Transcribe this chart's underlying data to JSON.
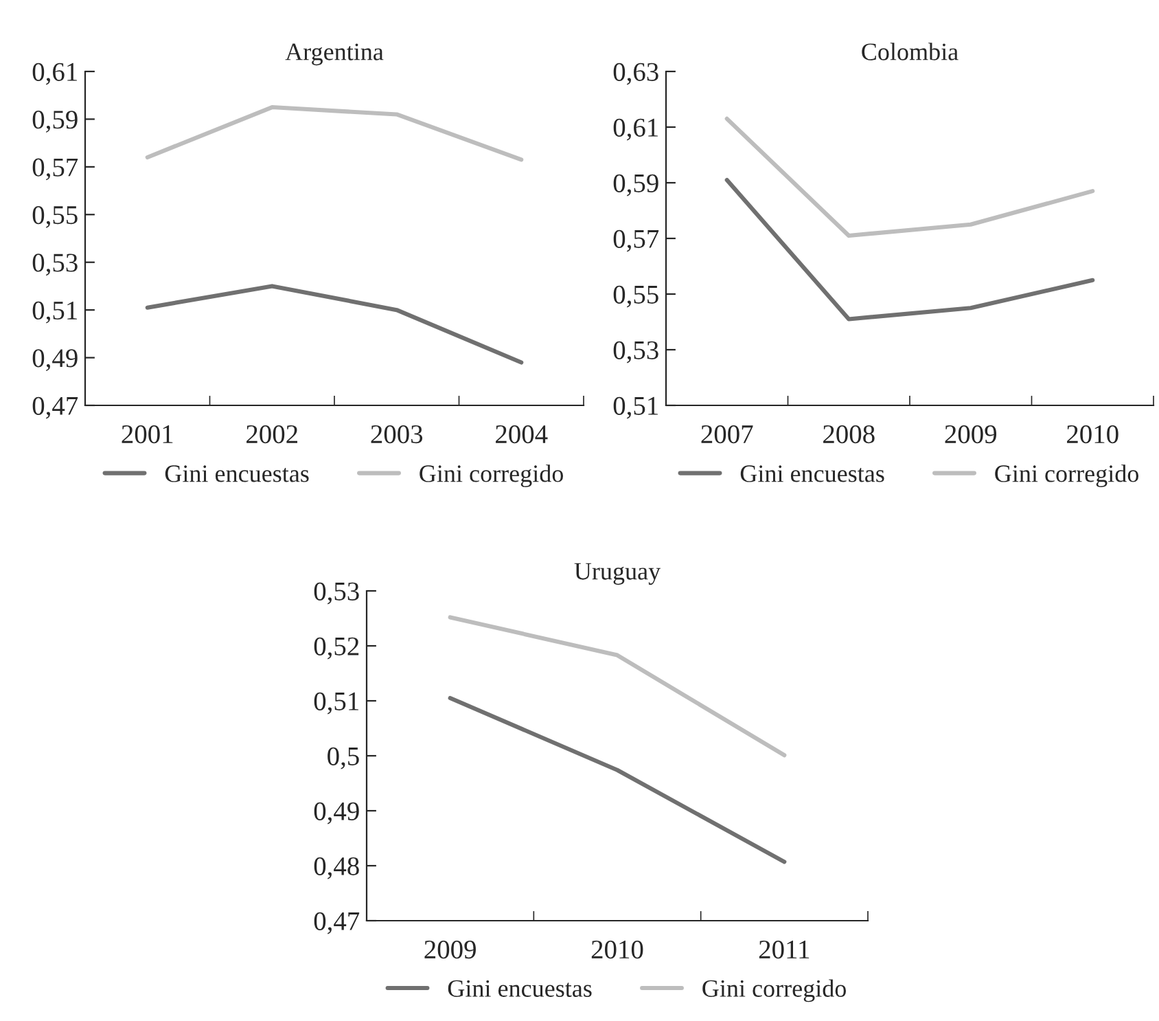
{
  "chart_data": [
    {
      "type": "line",
      "title": "Argentina",
      "categories": [
        "2001",
        "2002",
        "2003",
        "2004"
      ],
      "series": [
        {
          "name": "Gini encuestas",
          "color": "#707070",
          "values": [
            0.511,
            0.52,
            0.51,
            0.488
          ]
        },
        {
          "name": "Gini corregido",
          "color": "#bdbdbd",
          "values": [
            0.574,
            0.595,
            0.592,
            0.573
          ]
        }
      ],
      "ylim": [
        0.47,
        0.61
      ],
      "yticks": [
        {
          "value": 0.47,
          "label": "0,47"
        },
        {
          "value": 0.49,
          "label": "0,49"
        },
        {
          "value": 0.51,
          "label": "0,51"
        },
        {
          "value": 0.53,
          "label": "0,53"
        },
        {
          "value": 0.55,
          "label": "0,55"
        },
        {
          "value": 0.57,
          "label": "0,57"
        },
        {
          "value": 0.59,
          "label": "0,59"
        },
        {
          "value": 0.61,
          "label": "0,61"
        }
      ],
      "grid": false,
      "legend": "bottom",
      "marker": "none",
      "line_style": "solid"
    },
    {
      "type": "line",
      "title": "Colombia",
      "categories": [
        "2007",
        "2008",
        "2009",
        "2010"
      ],
      "series": [
        {
          "name": "Gini encuestas",
          "color": "#707070",
          "values": [
            0.591,
            0.541,
            0.545,
            0.555
          ]
        },
        {
          "name": "Gini corregido",
          "color": "#bdbdbd",
          "values": [
            0.613,
            0.571,
            0.575,
            0.587
          ]
        }
      ],
      "ylim": [
        0.51,
        0.63
      ],
      "yticks": [
        {
          "value": 0.51,
          "label": "0,51"
        },
        {
          "value": 0.53,
          "label": "0,53"
        },
        {
          "value": 0.55,
          "label": "0,55"
        },
        {
          "value": 0.57,
          "label": "0,57"
        },
        {
          "value": 0.59,
          "label": "0,59"
        },
        {
          "value": 0.61,
          "label": "0,61"
        },
        {
          "value": 0.63,
          "label": "0,63"
        }
      ],
      "grid": false,
      "legend": "bottom",
      "marker": "none",
      "line_style": "solid"
    },
    {
      "type": "line",
      "title": "Uruguay",
      "categories": [
        "2009",
        "2010",
        "2011"
      ],
      "series": [
        {
          "name": "Gini encuestas",
          "color": "#707070",
          "values": [
            0.5105,
            0.4974,
            0.4807
          ]
        },
        {
          "name": "Gini corregido",
          "color": "#bdbdbd",
          "values": [
            0.5252,
            0.5183,
            0.5001
          ]
        }
      ],
      "ylim": [
        0.47,
        0.53
      ],
      "yticks": [
        {
          "value": 0.47,
          "label": "0,47"
        },
        {
          "value": 0.48,
          "label": "0,48"
        },
        {
          "value": 0.49,
          "label": "0,49"
        },
        {
          "value": 0.5,
          "label": "0,5"
        },
        {
          "value": 0.51,
          "label": "0,51"
        },
        {
          "value": 0.52,
          "label": "0,52"
        },
        {
          "value": 0.53,
          "label": "0,53"
        }
      ],
      "grid": false,
      "legend": "bottom",
      "marker": "none",
      "line_style": "solid"
    }
  ]
}
